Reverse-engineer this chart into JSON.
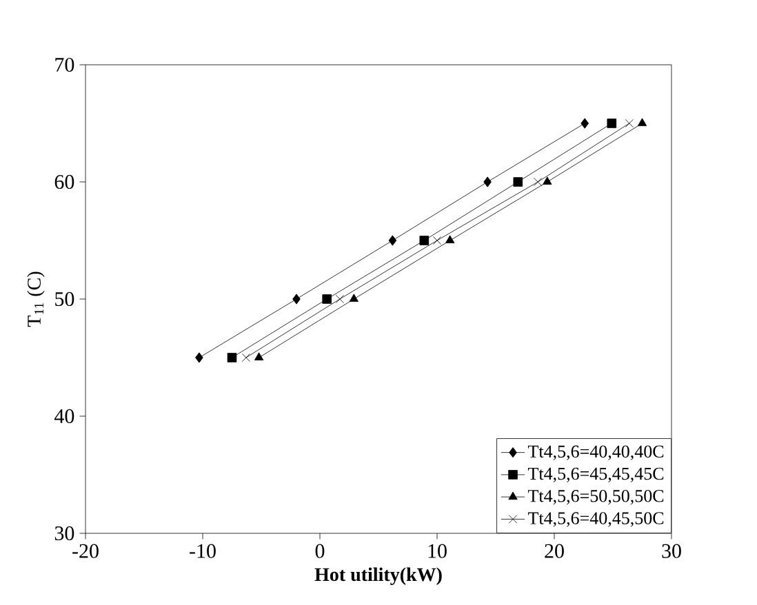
{
  "chart_data": {
    "type": "line",
    "xlabel": "Hot utility(kW)",
    "ylabel": "T$_{11}$ (C)",
    "xlim": [
      -20,
      30
    ],
    "xticks": [
      -20,
      -10,
      0,
      10,
      20,
      30
    ],
    "ylim": [
      30,
      70
    ],
    "yticks": [
      30,
      40,
      50,
      60,
      70
    ],
    "legend": "bottom right",
    "grid": false,
    "line_style": "solid",
    "series": [
      {
        "name": "Tt4,5,6=40,40,40C",
        "color": "#000000",
        "marker": "diamond",
        "x": [
          -10.3,
          -2.0,
          6.2,
          14.3,
          22.6
        ],
        "values": [
          45,
          50,
          55,
          60,
          65
        ]
      },
      {
        "name": "Tt4,5,6=45,45,45C",
        "color": "#000000",
        "marker": "square",
        "x": [
          -7.5,
          0.6,
          8.9,
          16.9,
          24.9
        ],
        "values": [
          45,
          50,
          55,
          60,
          65
        ]
      },
      {
        "name": "Tt4,5,6=50,50,50C",
        "color": "#000000",
        "marker": "triangle",
        "x": [
          -5.2,
          2.9,
          11.1,
          19.4,
          27.5
        ],
        "values": [
          45,
          50,
          55,
          60,
          65
        ]
      },
      {
        "name": "Tt4,5,6=40,45,50C",
        "color": "#000000",
        "marker": "cross",
        "x": [
          -6.3,
          1.7,
          10.0,
          18.6,
          26.4
        ],
        "values": [
          45,
          50,
          55,
          60,
          65
        ]
      }
    ]
  }
}
